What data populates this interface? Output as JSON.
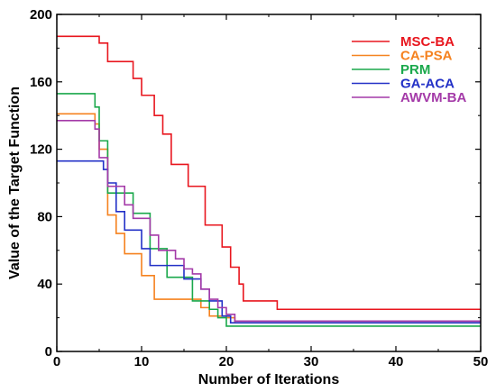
{
  "chart_data": {
    "type": "line",
    "title": "",
    "xlabel": "Number of Iterations",
    "ylabel": "Value of the Target Function",
    "xlim": [
      0,
      50
    ],
    "ylim": [
      0,
      200
    ],
    "xticks": [
      0,
      10,
      20,
      30,
      40,
      50
    ],
    "yticks": [
      0,
      40,
      80,
      120,
      160,
      200
    ],
    "grid": false,
    "legend_position": "top-right",
    "step": true,
    "series": [
      {
        "name": "MSC-BA",
        "color": "#e8161e",
        "x": [
          0,
          5,
          6,
          9,
          10,
          11.5,
          12.5,
          13.5,
          15.5,
          17.5,
          19.5,
          20.5,
          21.5,
          22,
          26,
          50
        ],
        "y": [
          187,
          183,
          172,
          162,
          152,
          140,
          129,
          111,
          98,
          75,
          62,
          50,
          40,
          30,
          25,
          25
        ]
      },
      {
        "name": "CA-PSA",
        "color": "#f5821f",
        "x": [
          0,
          4.5,
          5,
          6,
          7,
          8,
          9,
          10,
          11.5,
          16,
          17,
          18,
          19,
          20,
          21,
          50
        ],
        "y": [
          141,
          135,
          120,
          81,
          70,
          58,
          58,
          45,
          31,
          31,
          26,
          21,
          21,
          20,
          17,
          17
        ]
      },
      {
        "name": "PRM",
        "color": "#1aa84b",
        "x": [
          0,
          4.5,
          5,
          6,
          8,
          9,
          11,
          13,
          15,
          16,
          18,
          19,
          20,
          50
        ],
        "y": [
          153,
          145,
          125,
          94,
          94,
          82,
          61,
          44,
          44,
          30,
          25,
          20,
          15,
          15
        ]
      },
      {
        "name": "GA-ACA",
        "color": "#2331c7",
        "x": [
          0,
          5,
          5.5,
          6,
          7,
          8,
          10,
          11,
          13,
          15,
          17,
          18,
          19.5,
          20.5,
          50
        ],
        "y": [
          113,
          113,
          108,
          100,
          83,
          72,
          61,
          51,
          51,
          43,
          37,
          30,
          21,
          17,
          17
        ]
      },
      {
        "name": "AWVM-BA",
        "color": "#a43aa8",
        "x": [
          0,
          4.5,
          5,
          6,
          8,
          9,
          11,
          12,
          14,
          15,
          16,
          17,
          18,
          19,
          20,
          21,
          50
        ],
        "y": [
          137,
          132,
          115,
          98,
          87,
          79,
          69,
          60,
          55,
          49,
          46,
          37,
          31,
          26,
          22,
          18,
          18
        ]
      }
    ]
  }
}
